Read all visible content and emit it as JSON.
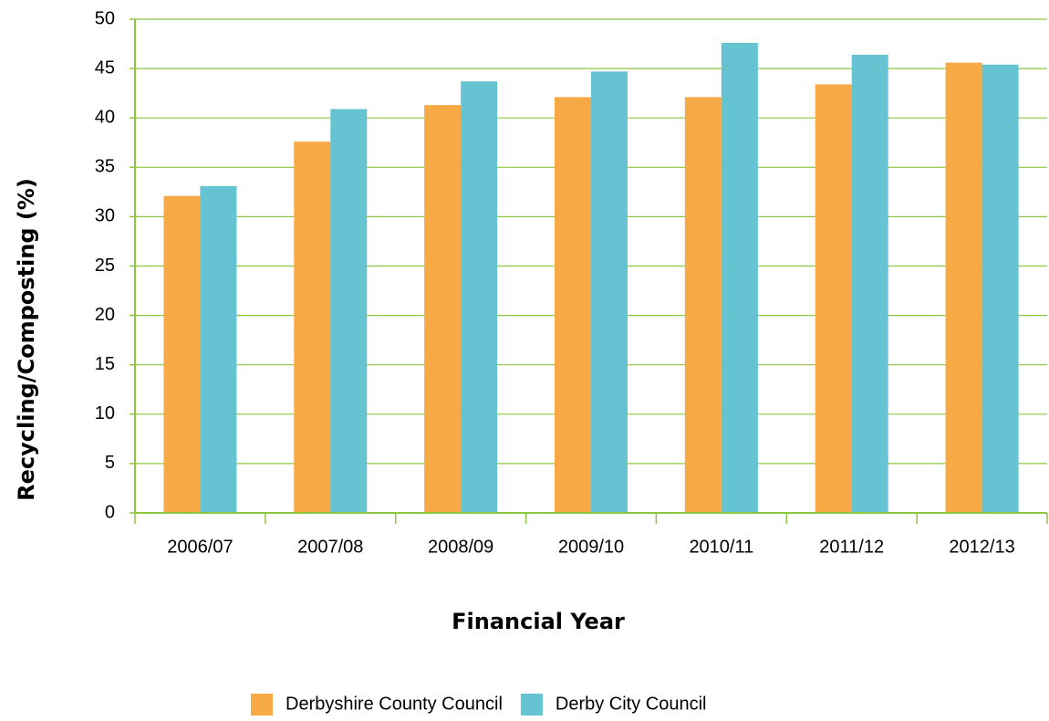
{
  "chart_data": {
    "type": "bar",
    "x_label": "Financial Year",
    "y_label": "Recycling/Composting (%)",
    "categories": [
      "2006/07",
      "2007/08",
      "2008/09",
      "2009/10",
      "2010/11",
      "2011/12",
      "2012/13"
    ],
    "series": [
      {
        "name": "Derbyshire County Council",
        "color": "#f7a945",
        "values": [
          32.1,
          37.6,
          41.3,
          42.1,
          42.1,
          43.4,
          45.6
        ]
      },
      {
        "name": "Derby City Council",
        "color": "#65c3d2",
        "values": [
          33.1,
          40.9,
          43.7,
          44.7,
          47.6,
          46.4,
          45.4
        ]
      }
    ],
    "ylim": [
      0,
      50
    ],
    "yticks": [
      0,
      5,
      10,
      15,
      20,
      25,
      30,
      35,
      40,
      45,
      50
    ],
    "grid": true,
    "legend": "bottom"
  }
}
